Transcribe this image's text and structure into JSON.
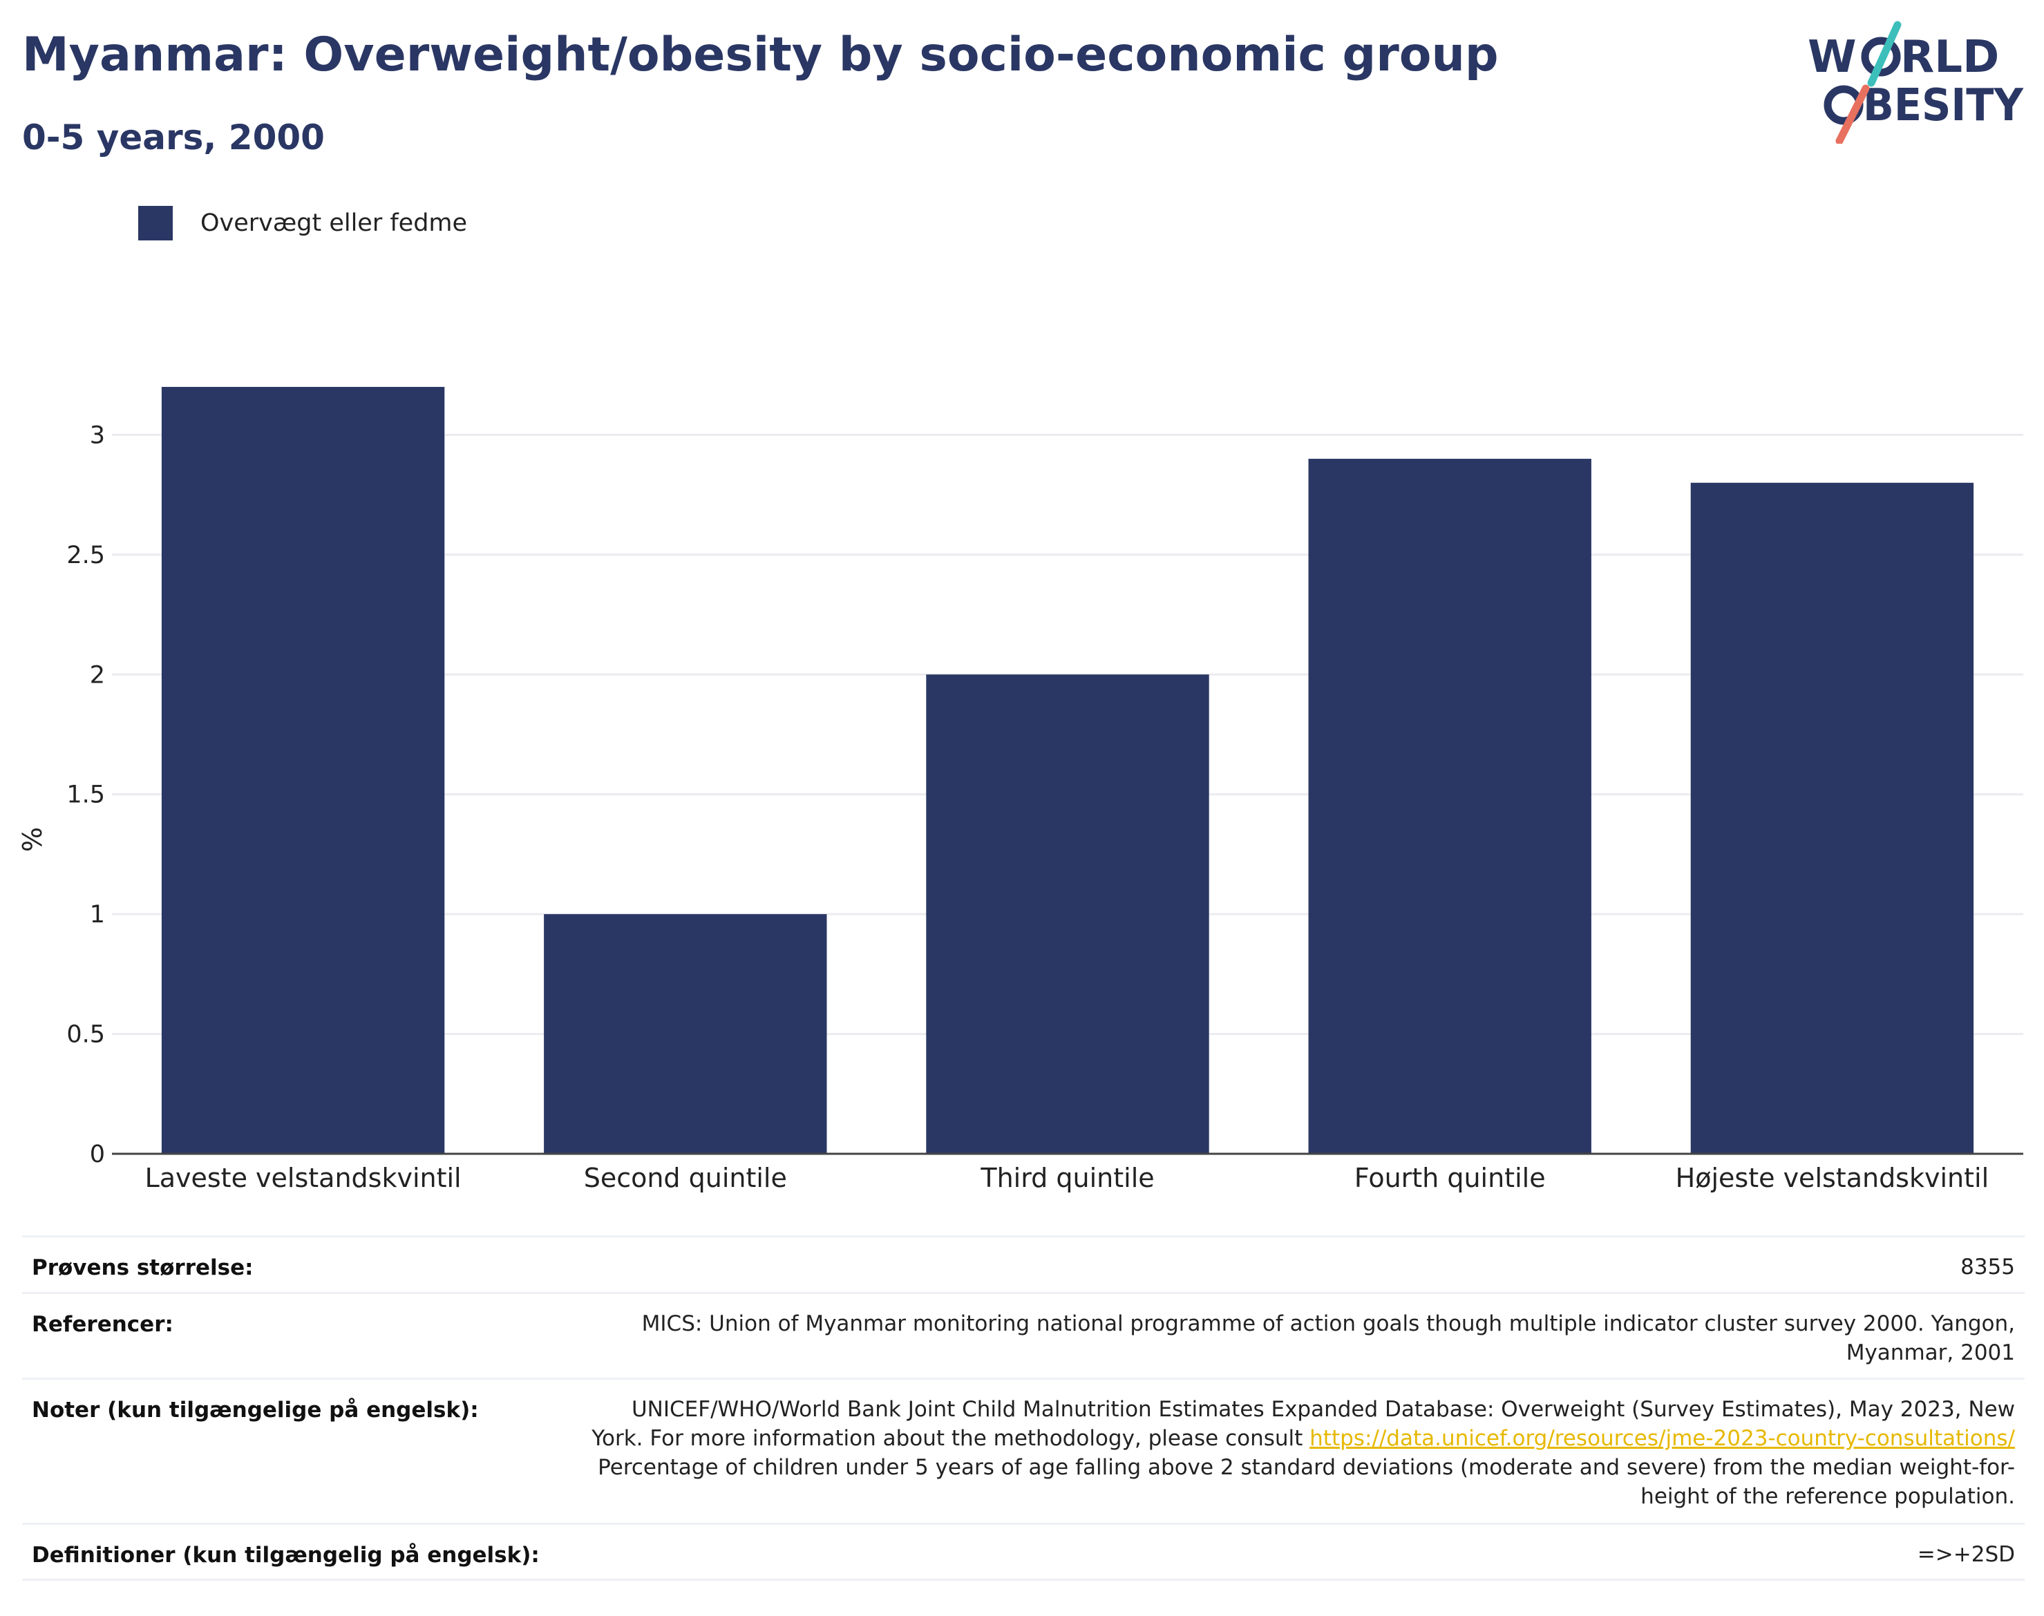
{
  "title": "Myanmar: Overweight/obesity by socio-economic group",
  "subtitle": "0-5 years, 2000",
  "logo": {
    "line1": "WORLD",
    "line2": "OBESITY",
    "colors": {
      "text": "#2a3764",
      "slash_top": "#3cbfbb",
      "slash_bottom": "#e8705f"
    }
  },
  "legend": {
    "label": "Overvægt eller fedme"
  },
  "colors": {
    "bar": "#2a3764",
    "grid": "#ebebf0",
    "axis": "#444444"
  },
  "chart_data": {
    "type": "bar",
    "categories": [
      "Laveste velstandskvintil",
      "Second quintile",
      "Third quintile",
      "Fourth quintile",
      "Højeste velstandskvintil"
    ],
    "series": [
      {
        "name": "Overvægt eller fedme",
        "values": [
          3.2,
          1.0,
          2.0,
          2.9,
          2.8
        ]
      }
    ],
    "ylabel": "%",
    "ylim": [
      0,
      3.2
    ],
    "yticks": [
      0,
      0.5,
      1,
      1.5,
      2,
      2.5,
      3
    ],
    "grid": true,
    "legend_position": "top-left"
  },
  "table": {
    "sample": {
      "label": "Prøvens størrelse:",
      "value": "8355"
    },
    "references": {
      "label": "Referencer:",
      "value": "MICS: Union of Myanmar monitoring national programme of action goals though multiple indicator cluster survey 2000. Yangon, Myanmar, 2001"
    },
    "notes": {
      "label": "Noter (kun tilgængelige på engelsk):",
      "text_before": "UNICEF/WHO/World Bank Joint Child Malnutrition Estimates Expanded Database: Overweight (Survey Estimates), May 2023, New York. For more information about the methodology, please consult ",
      "link": "https://data.unicef.org/resources/jme-2023-country-consultations/",
      "text_after": " Percentage of children under 5 years of age falling above 2 standard deviations (moderate and severe) from the median weight-for-height of the reference population."
    },
    "definitions": {
      "label": "Definitioner (kun tilgængelig på engelsk):",
      "value": "=>+2SD"
    }
  }
}
